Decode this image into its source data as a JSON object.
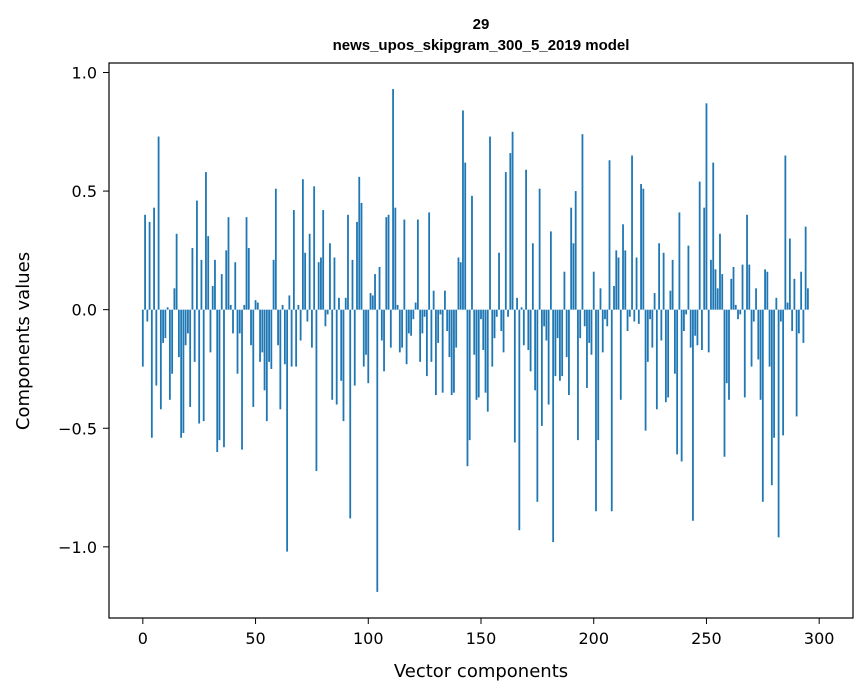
{
  "chart_data": {
    "type": "bar",
    "title_line1": "29",
    "title_line2": "news_upos_skipgram_300_5_2019 model",
    "xlabel": "Vector components",
    "ylabel": "Components values",
    "xlim": [
      -15,
      315
    ],
    "ylim": [
      -1.3,
      1.04
    ],
    "x_ticks": [
      0,
      50,
      100,
      150,
      200,
      250,
      300
    ],
    "x_tick_labels": [
      "0",
      "50",
      "100",
      "150",
      "200",
      "250",
      "300"
    ],
    "y_ticks": [
      1.0,
      0.5,
      0.0,
      -0.5,
      -1.0
    ],
    "y_tick_labels": [
      "1.0",
      "0.5",
      "0.0",
      "−0.5",
      "−1.0"
    ],
    "grid": false,
    "bar_color": "#1f77b4",
    "values": [
      -0.24,
      0.4,
      -0.05,
      0.37,
      -0.54,
      0.43,
      -0.32,
      0.73,
      -0.42,
      -0.14,
      -0.12,
      0.01,
      -0.38,
      -0.27,
      0.09,
      0.32,
      -0.2,
      -0.54,
      -0.52,
      -0.15,
      -0.1,
      -0.41,
      0.26,
      -0.22,
      0.46,
      -0.48,
      0.21,
      -0.47,
      0.58,
      0.31,
      -0.18,
      0.1,
      0.21,
      -0.6,
      -0.55,
      0.15,
      -0.58,
      0.25,
      0.39,
      0.02,
      -0.1,
      0.2,
      -0.27,
      -0.1,
      -0.59,
      0.02,
      0.39,
      0.26,
      -0.15,
      -0.41,
      0.04,
      0.03,
      -0.22,
      -0.18,
      -0.34,
      -0.47,
      -0.22,
      -0.25,
      0.21,
      0.51,
      -0.15,
      -0.42,
      0.02,
      -0.23,
      -1.02,
      0.06,
      -0.24,
      0.42,
      -0.24,
      0.02,
      -0.13,
      0.55,
      0.24,
      -0.05,
      0.32,
      -0.16,
      0.52,
      -0.68,
      0.2,
      0.22,
      0.42,
      -0.07,
      -0.02,
      0.28,
      -0.38,
      0.22,
      -0.4,
      0.05,
      -0.3,
      -0.47,
      0.05,
      0.4,
      -0.88,
      0.21,
      -0.32,
      0.37,
      0.56,
      0.45,
      -0.24,
      -0.19,
      -0.31,
      0.07,
      0.06,
      0.15,
      -1.19,
      0.18,
      -0.13,
      -0.26,
      0.39,
      0.4,
      -0.16,
      0.93,
      0.43,
      0.02,
      -0.18,
      -0.16,
      0.38,
      -0.23,
      -0.1,
      -0.11,
      -0.04,
      0.03,
      0.38,
      -0.22,
      -0.1,
      -0.03,
      -0.28,
      0.41,
      -0.22,
      0.08,
      -0.36,
      -0.14,
      -0.02,
      -0.35,
      0.08,
      -0.09,
      -0.2,
      -0.36,
      -0.35,
      -0.16,
      0.22,
      0.2,
      0.84,
      0.62,
      -0.66,
      -0.55,
      0.48,
      -0.19,
      -0.38,
      -0.37,
      -0.04,
      -0.17,
      -0.35,
      -0.43,
      0.73,
      -0.24,
      -0.12,
      -0.03,
      0.24,
      -0.09,
      -0.18,
      0.58,
      -0.03,
      0.66,
      0.75,
      -0.56,
      0.05,
      -0.93,
      0.01,
      -0.15,
      0.59,
      -0.17,
      -0.26,
      0.28,
      -0.34,
      -0.81,
      0.51,
      -0.49,
      -0.07,
      -0.13,
      -0.4,
      0.33,
      -0.98,
      -0.28,
      -0.12,
      -0.3,
      -0.28,
      0.16,
      -0.2,
      -0.36,
      0.43,
      0.28,
      0.5,
      -0.55,
      -0.12,
      0.74,
      -0.07,
      -0.33,
      -0.14,
      -0.19,
      0.16,
      -0.85,
      -0.55,
      0.09,
      -0.18,
      -0.04,
      -0.07,
      0.63,
      -0.85,
      0.1,
      0.25,
      0.22,
      -0.38,
      0.36,
      0.25,
      -0.09,
      -0.03,
      0.65,
      -0.05,
      0.22,
      -0.06,
      0.53,
      0.51,
      -0.51,
      -0.22,
      -0.04,
      -0.16,
      0.07,
      -0.42,
      0.28,
      -0.13,
      0.24,
      -0.39,
      -0.37,
      0.08,
      0.21,
      -0.27,
      -0.61,
      0.41,
      -0.64,
      -0.09,
      -0.02,
      0.27,
      -0.16,
      -0.89,
      -0.11,
      -0.15,
      0.54,
      -0.17,
      0.43,
      0.87,
      -0.18,
      0.21,
      0.62,
      0.17,
      0.09,
      0.32,
      0.15,
      -0.62,
      -0.31,
      -0.38,
      0.13,
      0.18,
      0.02,
      -0.04,
      -0.02,
      0.19,
      -0.37,
      0.4,
      0.19,
      -0.24,
      -0.05,
      0.09,
      -0.21,
      -0.38,
      -0.81,
      0.17,
      0.16,
      -0.24,
      -0.74,
      -0.54,
      0.05,
      -0.96,
      -0.05,
      -0.53,
      0.65,
      0.03,
      0.3,
      -0.09,
      0.13,
      -0.45,
      -0.1,
      0.16,
      -0.14,
      0.35,
      0.09
    ]
  }
}
